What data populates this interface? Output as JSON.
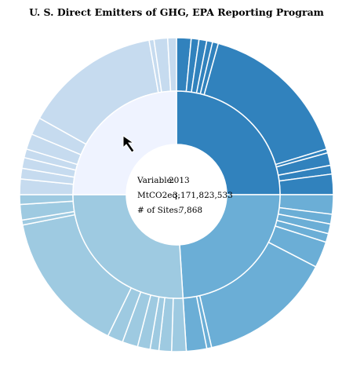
{
  "chart_data": {
    "type": "sunburst",
    "title": "U. S. Direct Emitters of GHG, EPA Reporting Program",
    "center": {
      "variable_label": "Variable:",
      "variable_value": "2013",
      "emissions_label": "MtCO2eq:",
      "emissions_value": "3,171,823,533",
      "sites_label": "# of Sites:",
      "sites_value": "7,868"
    },
    "inner_ring": [
      {
        "value": 25,
        "color": "#3182bd"
      },
      {
        "value": 24,
        "color": "#6baed6"
      },
      {
        "value": 26,
        "color": "#9ecae1"
      },
      {
        "value": 25,
        "color": "#eff3ff"
      }
    ],
    "outer_ring": [
      {
        "group": 0,
        "value": 1.5
      },
      {
        "group": 0,
        "value": 0.8
      },
      {
        "group": 0,
        "value": 0.8
      },
      {
        "group": 0,
        "value": 0.6
      },
      {
        "group": 0,
        "value": 0.6
      },
      {
        "group": 0,
        "value": 16.0
      },
      {
        "group": 0,
        "value": 0.4
      },
      {
        "group": 0,
        "value": 1.3
      },
      {
        "group": 0,
        "value": 0.9
      },
      {
        "group": 0,
        "value": 2.1
      },
      {
        "group": 1,
        "value": 2.0
      },
      {
        "group": 1,
        "value": 1.0
      },
      {
        "group": 1,
        "value": 1.0
      },
      {
        "group": 1,
        "value": 0.9
      },
      {
        "group": 1,
        "value": 2.7
      },
      {
        "group": 1,
        "value": 13.8
      },
      {
        "group": 1,
        "value": 0.5
      },
      {
        "group": 1,
        "value": 2.1
      },
      {
        "group": 2,
        "value": 1.5
      },
      {
        "group": 2,
        "value": 1.3
      },
      {
        "group": 2,
        "value": 0.9
      },
      {
        "group": 2,
        "value": 1.3
      },
      {
        "group": 2,
        "value": 1.6
      },
      {
        "group": 2,
        "value": 1.6
      },
      {
        "group": 2,
        "value": 14.7
      },
      {
        "group": 2,
        "value": 0.5
      },
      {
        "group": 2,
        "value": 1.6
      },
      {
        "group": 2,
        "value": 1.0
      },
      {
        "group": 3,
        "value": 1.6
      },
      {
        "group": 3,
        "value": 1.1
      },
      {
        "group": 3,
        "value": 1.1
      },
      {
        "group": 3,
        "value": 0.9
      },
      {
        "group": 3,
        "value": 1.6
      },
      {
        "group": 3,
        "value": 1.8
      },
      {
        "group": 3,
        "value": 14.1
      },
      {
        "group": 3,
        "value": 0.5
      },
      {
        "group": 3,
        "value": 1.4
      },
      {
        "group": 3,
        "value": 0.9
      }
    ]
  }
}
